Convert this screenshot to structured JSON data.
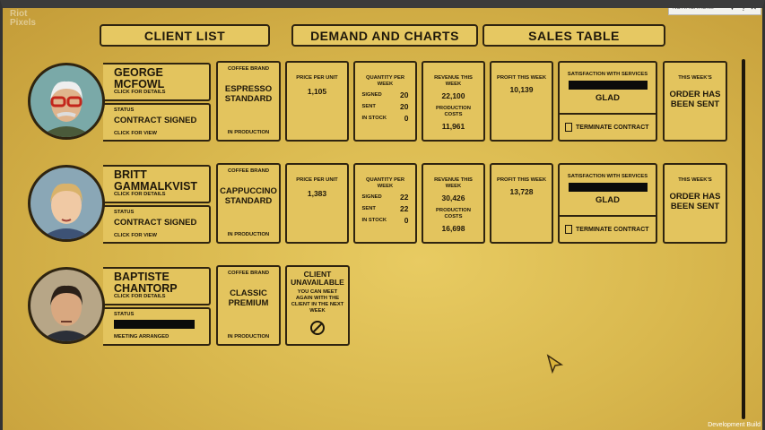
{
  "watermark": "Riot Pixels",
  "notifications": "NOTIFICATIONS",
  "tabs": [
    "CLIENT LIST",
    "DEMAND AND CHARTS",
    "SALES TABLE"
  ],
  "clients": [
    {
      "name": "GEORGE MCFOWL",
      "details": "CLICK FOR DETAILS",
      "status_label": "STATUS",
      "status": "CONTRACT SIGNED",
      "status_hint": "CLICK FOR VIEW",
      "coffee_label": "COFFEE BRAND",
      "coffee": "ESPRESSO STANDARD",
      "coffee_state": "IN PRODUCTION",
      "price_label": "PRICE PER UNIT",
      "price": "1,105",
      "quantity_label": "QUANTITY PER WEEK",
      "signed_label": "SIGNED",
      "signed": "20",
      "sent_label": "SENT",
      "sent": "20",
      "stock_label": "IN STOCK",
      "stock": "0",
      "revenue_label": "REVENUE THIS WEEK",
      "revenue": "22,100",
      "costs_label": "PRODUCTION COSTS",
      "costs": "11,961",
      "profit_label": "PROFIT THIS WEEK",
      "profit": "10,139",
      "satisfaction_label": "SATISFACTION WITH SERVICES",
      "satisfaction": "GLAD",
      "terminate": "TERMINATE CONTRACT",
      "order_label": "THIS WEEK'S",
      "order": "ORDER HAS BEEN SENT"
    },
    {
      "name": "BRITT GAMMALKVIST",
      "details": "CLICK FOR DETAILS",
      "status_label": "STATUS",
      "status": "CONTRACT SIGNED",
      "status_hint": "CLICK FOR VIEW",
      "coffee_label": "COFFEE BRAND",
      "coffee": "CAPPUCCINO STANDARD",
      "coffee_state": "IN PRODUCTION",
      "price_label": "PRICE PER UNIT",
      "price": "1,383",
      "quantity_label": "QUANTITY PER WEEK",
      "signed_label": "SIGNED",
      "signed": "22",
      "sent_label": "SENT",
      "sent": "22",
      "stock_label": "IN STOCK",
      "stock": "0",
      "revenue_label": "REVENUE THIS WEEK",
      "revenue": "30,426",
      "costs_label": "PRODUCTION COSTS",
      "costs": "16,698",
      "profit_label": "PROFIT THIS WEEK",
      "profit": "13,728",
      "satisfaction_label": "SATISFACTION WITH SERVICES",
      "satisfaction": "GLAD",
      "terminate": "TERMINATE CONTRACT",
      "order_label": "THIS WEEK'S",
      "order": "ORDER HAS BEEN SENT"
    },
    {
      "name": "BAPTISTE CHANTORP",
      "details": "CLICK FOR DETAILS",
      "status_label": "STATUS",
      "status_hint": "MEETING ARRANGED",
      "coffee_label": "COFFEE BRAND",
      "coffee": "CLASSIC PREMIUM",
      "coffee_state": "IN PRODUCTION",
      "unavailable_title": "CLIENT UNAVAILABLE",
      "unavailable_text": "YOU CAN MEET AGAIN WITH THE CLIENT IN THE NEXT WEEK"
    }
  ],
  "footer": "Development Build"
}
